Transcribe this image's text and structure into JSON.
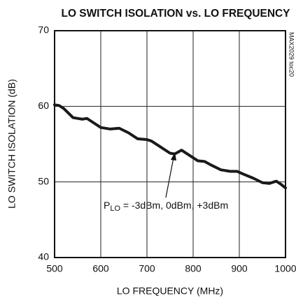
{
  "chart_data": {
    "type": "line",
    "title": "LO SWITCH ISOLATION vs. LO FREQUENCY",
    "xlabel": "LO FREQUENCY (MHz)",
    "ylabel": "LO SWITCH ISOLATION (dB)",
    "side_label": "MAX2029 toc20",
    "annotation": {
      "text": "P",
      "subscript": "LO",
      "rest": " = -3dBm, 0dBm, +3dBm"
    },
    "xlim": [
      500,
      1000
    ],
    "xticks": [
      500,
      600,
      700,
      800,
      900,
      1000
    ],
    "ylim": [
      40,
      70
    ],
    "yticks": [
      40,
      50,
      60,
      70
    ],
    "grid": true,
    "x": [
      500,
      510,
      520,
      540,
      560,
      570,
      580,
      600,
      620,
      640,
      660,
      680,
      700,
      710,
      730,
      750,
      760,
      775,
      790,
      810,
      825,
      840,
      860,
      880,
      895,
      910,
      930,
      950,
      965,
      980,
      990,
      1000
    ],
    "series": [
      {
        "color": "#1a1a1a",
        "values": [
          60.2,
          60.1,
          59.7,
          58.5,
          58.3,
          58.4,
          58.0,
          57.2,
          57.0,
          57.1,
          56.5,
          55.7,
          55.6,
          55.4,
          54.6,
          53.8,
          53.7,
          54.2,
          53.6,
          52.8,
          52.7,
          52.2,
          51.6,
          51.4,
          51.4,
          51.0,
          50.5,
          49.9,
          49.8,
          50.1,
          49.7,
          49.2
        ]
      }
    ]
  }
}
